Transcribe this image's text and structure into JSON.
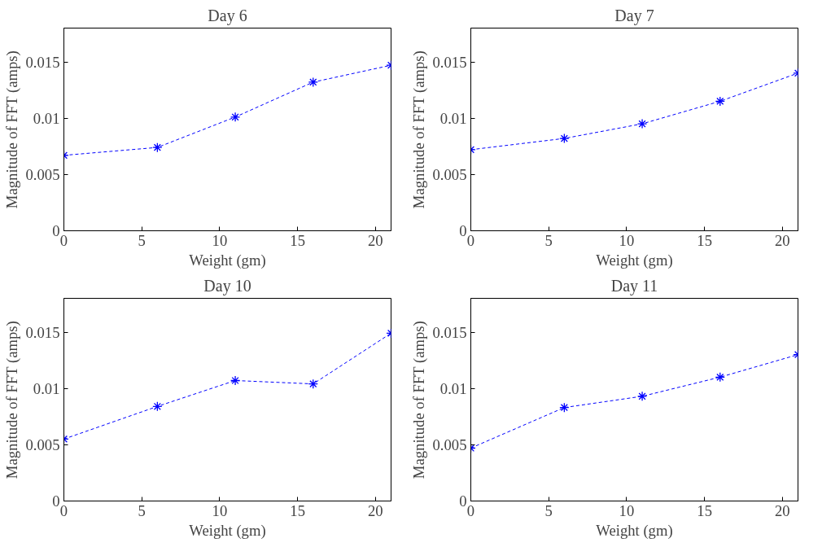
{
  "chart_data": [
    {
      "type": "line",
      "title": "Day 6",
      "xlabel": "Weight (gm)",
      "ylabel": "Magnitude of FFT (amps)",
      "x": [
        0,
        6,
        11,
        16,
        21
      ],
      "series": [
        {
          "color": "#0000ff",
          "values": [
            0.0067,
            0.0074,
            0.0101,
            0.0132,
            0.0147
          ]
        }
      ],
      "xlim": [
        0,
        21
      ],
      "ylim": [
        0,
        0.018
      ],
      "xticks": [
        0,
        5,
        10,
        15,
        20
      ],
      "yticks": [
        0,
        0.005,
        0.01,
        0.015
      ],
      "grid": false,
      "marker": "cross",
      "line_style": "dashed"
    },
    {
      "type": "line",
      "title": "Day 7",
      "xlabel": "Weight (gm)",
      "ylabel": "Magnitude of FFT (amps)",
      "x": [
        0,
        6,
        11,
        16,
        21
      ],
      "series": [
        {
          "color": "#0000ff",
          "values": [
            0.0072,
            0.0082,
            0.0095,
            0.0115,
            0.014
          ]
        }
      ],
      "xlim": [
        0,
        21
      ],
      "ylim": [
        0,
        0.018
      ],
      "xticks": [
        0,
        5,
        10,
        15,
        20
      ],
      "yticks": [
        0,
        0.005,
        0.01,
        0.015
      ],
      "grid": false,
      "marker": "cross",
      "line_style": "dashed"
    },
    {
      "type": "line",
      "title": "Day 10",
      "xlabel": "Weight (gm)",
      "ylabel": "Magnitude of FFT (amps)",
      "x": [
        0,
        6,
        11,
        16,
        21
      ],
      "series": [
        {
          "color": "#0000ff",
          "values": [
            0.0055,
            0.0084,
            0.0107,
            0.0104,
            0.0149
          ]
        }
      ],
      "xlim": [
        0,
        21
      ],
      "ylim": [
        0,
        0.018
      ],
      "xticks": [
        0,
        5,
        10,
        15,
        20
      ],
      "yticks": [
        0,
        0.005,
        0.01,
        0.015
      ],
      "grid": false,
      "marker": "cross",
      "line_style": "dashed"
    },
    {
      "type": "line",
      "title": "Day 11",
      "xlabel": "Weight (gm)",
      "ylabel": "Magnitude of FFT (amps)",
      "x": [
        0,
        6,
        11,
        16,
        21
      ],
      "series": [
        {
          "color": "#0000ff",
          "values": [
            0.0047,
            0.0083,
            0.0093,
            0.011,
            0.013
          ]
        }
      ],
      "xlim": [
        0,
        21
      ],
      "ylim": [
        0,
        0.018
      ],
      "xticks": [
        0,
        5,
        10,
        15,
        20
      ],
      "yticks": [
        0,
        0.005,
        0.01,
        0.015
      ],
      "grid": false,
      "marker": "cross",
      "line_style": "dashed"
    }
  ]
}
